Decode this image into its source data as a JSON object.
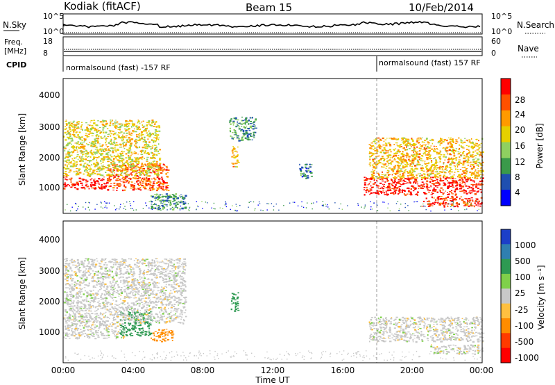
{
  "header": {
    "station": "Kodiak (fitACF)",
    "beam": "Beam 15",
    "date": "10/Feb/2014"
  },
  "noise_panel": {
    "left_label": "N.Sky",
    "right_label": "N.Search",
    "left_ticks": [
      "10^5",
      "10^0"
    ],
    "right_ticks": [
      "10^5",
      "10^0"
    ]
  },
  "freq_panel": {
    "left_label_line1": "Freq.",
    "left_label_line2": "[MHz]",
    "right_label": "Nave",
    "left_ticks": [
      "18",
      "8"
    ],
    "right_ticks": [
      "60",
      "0"
    ]
  },
  "cpid": {
    "label": "CPID",
    "segments": [
      {
        "text": "normalsound (fast) -157 RF",
        "start_hour": 0
      },
      {
        "text": "normalsound (fast) 157 RF",
        "start_hour": 18
      }
    ]
  },
  "power_panel": {
    "ylabel": "Slant Range [km]",
    "yticks": [
      "1000",
      "2000",
      "3000",
      "4000"
    ],
    "colorbar_label": "Power [dB]",
    "colorbar_ticks": [
      "4",
      "8",
      "12",
      "16",
      "20",
      "24",
      "28"
    ],
    "colorbar_colors": [
      "#0000ff",
      "#1f4fb0",
      "#3a9a4a",
      "#8fd060",
      "#e6d000",
      "#ff9a00",
      "#ff5000",
      "#ff0000"
    ]
  },
  "velocity_panel": {
    "ylabel": "Slant Range [km]",
    "yticks": [
      "1000",
      "2000",
      "3000",
      "4000"
    ],
    "colorbar_label": "Velocity [m s⁻¹]",
    "colorbar_ticks": [
      "1000",
      "500",
      "100",
      "25",
      "-25",
      "-100",
      "-500",
      "-1000"
    ],
    "colorbar_colors": [
      "#1c3fc8",
      "#2f7fb0",
      "#2e9a52",
      "#7fd04a",
      "#c8c8c8",
      "#ffc040",
      "#ff8c00",
      "#ff3a00",
      "#ff0000"
    ]
  },
  "xaxis": {
    "label": "Time UT",
    "ticks": [
      "00:00",
      "04:00",
      "08:00",
      "12:00",
      "16:00",
      "20:00",
      "00:00"
    ]
  },
  "chart_data": {
    "type": "heatmap",
    "title": "Kodiak (fitACF)",
    "subtitle": "Beam 15",
    "xlabel": "Time UT",
    "ylabel": "Slant Range [km]",
    "xlim": [
      0,
      24
    ],
    "ylim": [
      0,
      4600
    ],
    "power_range_db": [
      0,
      32
    ],
    "velocity_range_ms": [
      -1000,
      1000
    ],
    "power_regions": [
      {
        "t0": 0.0,
        "t1": 2.5,
        "r0": 850,
        "r1": 1250,
        "value": 30
      },
      {
        "t0": 2.5,
        "t1": 6.0,
        "r0": 800,
        "r1": 1700,
        "value": 26
      },
      {
        "t0": 0.0,
        "t1": 5.5,
        "r0": 1300,
        "r1": 3200,
        "value": 18
      },
      {
        "t0": 5.0,
        "t1": 7.0,
        "r0": 150,
        "r1": 700,
        "value": 10
      },
      {
        "t0": 9.6,
        "t1": 10.0,
        "r0": 1600,
        "r1": 2300,
        "value": 20
      },
      {
        "t0": 9.5,
        "t1": 11.0,
        "r0": 2500,
        "r1": 3300,
        "value": 10
      },
      {
        "t0": 13.5,
        "t1": 14.2,
        "r0": 1200,
        "r1": 1700,
        "value": 8
      },
      {
        "t0": 17.2,
        "t1": 24.0,
        "r0": 650,
        "r1": 1250,
        "value": 30
      },
      {
        "t0": 17.5,
        "t1": 24.0,
        "r0": 1200,
        "r1": 2600,
        "value": 20
      },
      {
        "t0": 20.5,
        "t1": 24.0,
        "r0": 250,
        "r1": 600,
        "value": 28
      }
    ],
    "velocity_regions": [
      {
        "t0": 0.0,
        "t1": 3.5,
        "r0": 800,
        "r1": 1300,
        "value": 0
      },
      {
        "t0": 3.2,
        "t1": 5.0,
        "r0": 900,
        "r1": 1700,
        "value": 150
      },
      {
        "t0": 5.0,
        "t1": 6.3,
        "r0": 700,
        "r1": 1100,
        "value": -300
      },
      {
        "t0": 0.0,
        "t1": 7.0,
        "r0": 1300,
        "r1": 3400,
        "value": 0
      },
      {
        "t0": 9.6,
        "t1": 10.0,
        "r0": 1700,
        "r1": 2300,
        "value": 200
      },
      {
        "t0": 17.5,
        "t1": 24.0,
        "r0": 700,
        "r1": 1500,
        "value": 0
      },
      {
        "t0": 21.0,
        "t1": 24.0,
        "r0": 300,
        "r1": 600,
        "value": 0
      }
    ]
  }
}
